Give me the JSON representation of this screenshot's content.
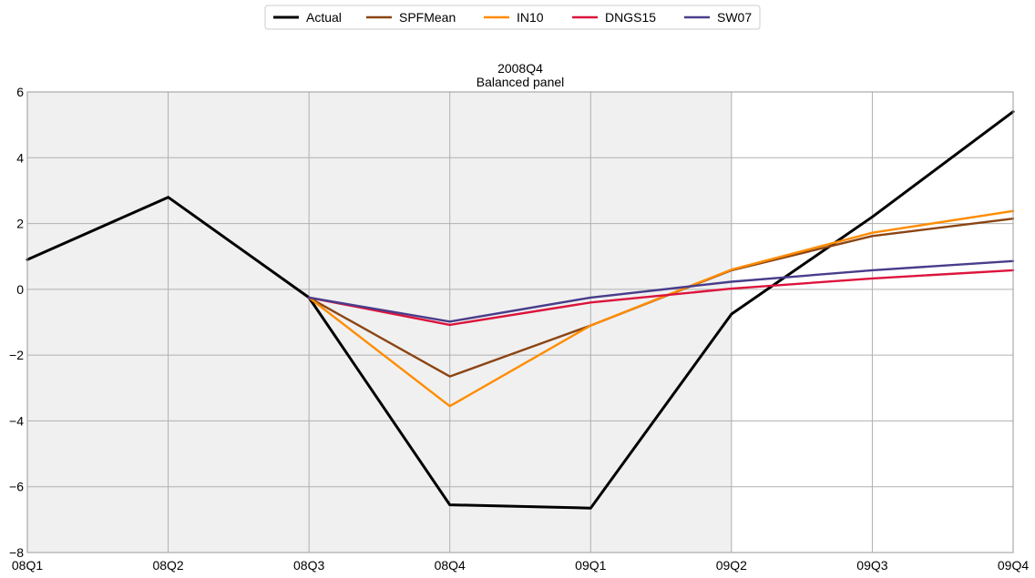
{
  "chart_data": {
    "type": "line",
    "title": "2008Q4",
    "subtitle": "Balanced panel",
    "xlabel": "",
    "ylabel": "",
    "x": [
      "08Q1",
      "08Q2",
      "08Q3",
      "08Q4",
      "09Q1",
      "09Q2",
      "09Q3",
      "09Q4"
    ],
    "ylim": [
      -8,
      6
    ],
    "yticks": [
      -8,
      -6,
      -4,
      -2,
      0,
      2,
      4,
      6
    ],
    "grid": true,
    "legend_position": "top-center",
    "shaded_region": {
      "from": "08Q1",
      "to": "09Q2",
      "color": "#f0f0f0"
    },
    "series": [
      {
        "name": "Actual",
        "color": "#000000",
        "values": [
          0.9,
          2.8,
          -0.25,
          -6.55,
          -6.65,
          -0.75,
          2.2,
          5.4
        ]
      },
      {
        "name": "SPFMean",
        "color": "#8b4513",
        "values": [
          null,
          null,
          -0.25,
          -2.65,
          -1.1,
          0.58,
          1.62,
          2.15
        ]
      },
      {
        "name": "IN10",
        "color": "#ff8c00",
        "values": [
          null,
          null,
          -0.25,
          -3.55,
          -1.1,
          0.6,
          1.72,
          2.38
        ]
      },
      {
        "name": "DNGS15",
        "color": "#dc143c",
        "values": [
          null,
          null,
          -0.25,
          -1.08,
          -0.4,
          0.02,
          0.33,
          0.58
        ]
      },
      {
        "name": "SW07",
        "color": "#483d8b",
        "values": [
          null,
          null,
          -0.25,
          -0.98,
          -0.25,
          0.23,
          0.58,
          0.86
        ]
      }
    ]
  }
}
